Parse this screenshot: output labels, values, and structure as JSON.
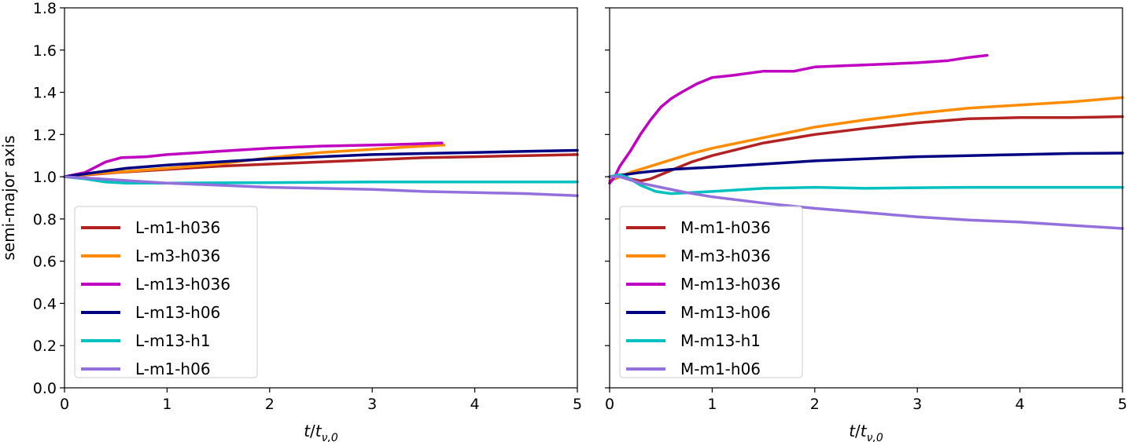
{
  "chart_data": [
    {
      "type": "line",
      "title": "",
      "xlabel": "t/t_{ν,0}",
      "ylabel": "semi-major axis",
      "xlim": [
        0,
        5
      ],
      "ylim": [
        0,
        1.8
      ],
      "x_ticks": [
        "0",
        "1",
        "2",
        "3",
        "4",
        "5"
      ],
      "y_ticks": [
        "0.0",
        "0.2",
        "0.4",
        "0.6",
        "0.8",
        "1.0",
        "1.2",
        "1.4",
        "1.6",
        "1.8"
      ],
      "grid": false,
      "legend_position": "lower-left",
      "series": [
        {
          "name": "L-m1-h036",
          "color": "#b22222",
          "points": [
            [
              0,
              1.0
            ],
            [
              0.5,
              1.02
            ],
            [
              1,
              1.035
            ],
            [
              1.5,
              1.05
            ],
            [
              2,
              1.06
            ],
            [
              2.5,
              1.07
            ],
            [
              3,
              1.08
            ],
            [
              3.5,
              1.09
            ],
            [
              4,
              1.095
            ],
            [
              4.5,
              1.1
            ],
            [
              5,
              1.105
            ]
          ]
        },
        {
          "name": "L-m3-h036",
          "color": "#ff8c00",
          "points": [
            [
              0,
              1.0
            ],
            [
              0.3,
              1.015
            ],
            [
              0.6,
              1.025
            ],
            [
              1,
              1.04
            ],
            [
              1.5,
              1.06
            ],
            [
              2,
              1.09
            ],
            [
              2.5,
              1.115
            ],
            [
              3,
              1.13
            ],
            [
              3.3,
              1.14
            ],
            [
              3.7,
              1.15
            ]
          ]
        },
        {
          "name": "L-m13-h036",
          "color": "#c000c0",
          "points": [
            [
              0,
              1.0
            ],
            [
              0.2,
              1.02
            ],
            [
              0.4,
              1.07
            ],
            [
              0.55,
              1.09
            ],
            [
              0.8,
              1.095
            ],
            [
              1,
              1.105
            ],
            [
              1.5,
              1.12
            ],
            [
              2,
              1.135
            ],
            [
              2.5,
              1.145
            ],
            [
              3,
              1.15
            ],
            [
              3.4,
              1.155
            ],
            [
              3.68,
              1.16
            ]
          ]
        },
        {
          "name": "L-m13-h06",
          "color": "#000080",
          "points": [
            [
              0,
              1.0
            ],
            [
              0.3,
              1.02
            ],
            [
              0.6,
              1.04
            ],
            [
              1,
              1.055
            ],
            [
              1.5,
              1.07
            ],
            [
              2,
              1.085
            ],
            [
              2.5,
              1.095
            ],
            [
              3,
              1.105
            ],
            [
              3.5,
              1.11
            ],
            [
              4,
              1.115
            ],
            [
              4.5,
              1.12
            ],
            [
              5,
              1.125
            ]
          ]
        },
        {
          "name": "L-m13-h1",
          "color": "#00c0c0",
          "points": [
            [
              0,
              1.0
            ],
            [
              0.2,
              0.99
            ],
            [
              0.4,
              0.975
            ],
            [
              0.6,
              0.97
            ],
            [
              1,
              0.97
            ],
            [
              2,
              0.972
            ],
            [
              3,
              0.975
            ],
            [
              4,
              0.975
            ],
            [
              5,
              0.975
            ]
          ]
        },
        {
          "name": "L-m1-h06",
          "color": "#9370db",
          "points": [
            [
              0,
              1.0
            ],
            [
              0.5,
              0.985
            ],
            [
              1,
              0.97
            ],
            [
              1.5,
              0.96
            ],
            [
              2,
              0.95
            ],
            [
              2.5,
              0.945
            ],
            [
              3,
              0.94
            ],
            [
              3.5,
              0.93
            ],
            [
              4,
              0.925
            ],
            [
              4.5,
              0.92
            ],
            [
              5,
              0.91
            ]
          ]
        }
      ]
    },
    {
      "type": "line",
      "title": "",
      "xlabel": "t/t_{ν,0}",
      "ylabel": "",
      "xlim": [
        0,
        5
      ],
      "ylim": [
        0,
        1.8
      ],
      "x_ticks": [
        "0",
        "1",
        "2",
        "3",
        "4",
        "5"
      ],
      "y_ticks": [
        "",
        "",
        "",
        "",
        "",
        "",
        "",
        "",
        "",
        ""
      ],
      "grid": false,
      "legend_position": "lower-left",
      "series": [
        {
          "name": "M-m1-h036",
          "color": "#b22222",
          "points": [
            [
              0,
              0.97
            ],
            [
              0.05,
              1.0
            ],
            [
              0.12,
              1.01
            ],
            [
              0.2,
              0.99
            ],
            [
              0.3,
              0.98
            ],
            [
              0.4,
              0.99
            ],
            [
              0.6,
              1.03
            ],
            [
              0.8,
              1.07
            ],
            [
              1,
              1.1
            ],
            [
              1.5,
              1.16
            ],
            [
              2,
              1.2
            ],
            [
              2.5,
              1.23
            ],
            [
              3,
              1.255
            ],
            [
              3.5,
              1.275
            ],
            [
              4,
              1.28
            ],
            [
              4.5,
              1.28
            ],
            [
              5,
              1.285
            ]
          ]
        },
        {
          "name": "M-m3-h036",
          "color": "#ff8c00",
          "points": [
            [
              0,
              0.98
            ],
            [
              0.1,
              1.0
            ],
            [
              0.2,
              1.02
            ],
            [
              0.4,
              1.05
            ],
            [
              0.6,
              1.08
            ],
            [
              0.8,
              1.11
            ],
            [
              1,
              1.135
            ],
            [
              1.5,
              1.185
            ],
            [
              2,
              1.235
            ],
            [
              2.5,
              1.27
            ],
            [
              3,
              1.3
            ],
            [
              3.5,
              1.325
            ],
            [
              4,
              1.34
            ],
            [
              4.5,
              1.355
            ],
            [
              5,
              1.375
            ]
          ]
        },
        {
          "name": "M-m13-h036",
          "color": "#c000c0",
          "points": [
            [
              0,
              0.97
            ],
            [
              0.05,
              1.0
            ],
            [
              0.1,
              1.05
            ],
            [
              0.2,
              1.12
            ],
            [
              0.3,
              1.2
            ],
            [
              0.4,
              1.27
            ],
            [
              0.5,
              1.33
            ],
            [
              0.6,
              1.37
            ],
            [
              0.7,
              1.4
            ],
            [
              0.85,
              1.44
            ],
            [
              1,
              1.47
            ],
            [
              1.2,
              1.48
            ],
            [
              1.5,
              1.5
            ],
            [
              1.8,
              1.5
            ],
            [
              2,
              1.52
            ],
            [
              2.5,
              1.53
            ],
            [
              3,
              1.54
            ],
            [
              3.3,
              1.55
            ],
            [
              3.5,
              1.565
            ],
            [
              3.68,
              1.575
            ]
          ]
        },
        {
          "name": "M-m13-h06",
          "color": "#000080",
          "points": [
            [
              0,
              1.0
            ],
            [
              0.3,
              1.02
            ],
            [
              0.6,
              1.035
            ],
            [
              1,
              1.045
            ],
            [
              1.5,
              1.06
            ],
            [
              2,
              1.075
            ],
            [
              2.5,
              1.085
            ],
            [
              3,
              1.095
            ],
            [
              3.5,
              1.1
            ],
            [
              4,
              1.105
            ],
            [
              4.5,
              1.11
            ],
            [
              5,
              1.112
            ]
          ]
        },
        {
          "name": "M-m13-h1",
          "color": "#00c0c0",
          "points": [
            [
              0,
              1.0
            ],
            [
              0.1,
              1.01
            ],
            [
              0.2,
              0.99
            ],
            [
              0.3,
              0.96
            ],
            [
              0.45,
              0.93
            ],
            [
              0.6,
              0.92
            ],
            [
              0.8,
              0.925
            ],
            [
              1,
              0.93
            ],
            [
              1.5,
              0.945
            ],
            [
              2,
              0.95
            ],
            [
              2.5,
              0.945
            ],
            [
              3,
              0.948
            ],
            [
              3.5,
              0.95
            ],
            [
              4,
              0.95
            ],
            [
              4.5,
              0.95
            ],
            [
              5,
              0.95
            ]
          ]
        },
        {
          "name": "M-m1-h06",
          "color": "#9370db",
          "points": [
            [
              0,
              1.0
            ],
            [
              0.1,
              1.0
            ],
            [
              0.3,
              0.97
            ],
            [
              0.5,
              0.95
            ],
            [
              0.75,
              0.925
            ],
            [
              1,
              0.905
            ],
            [
              1.5,
              0.875
            ],
            [
              2,
              0.85
            ],
            [
              2.5,
              0.83
            ],
            [
              3,
              0.81
            ],
            [
              3.5,
              0.795
            ],
            [
              4,
              0.785
            ],
            [
              4.5,
              0.77
            ],
            [
              5,
              0.755
            ]
          ]
        }
      ]
    }
  ]
}
